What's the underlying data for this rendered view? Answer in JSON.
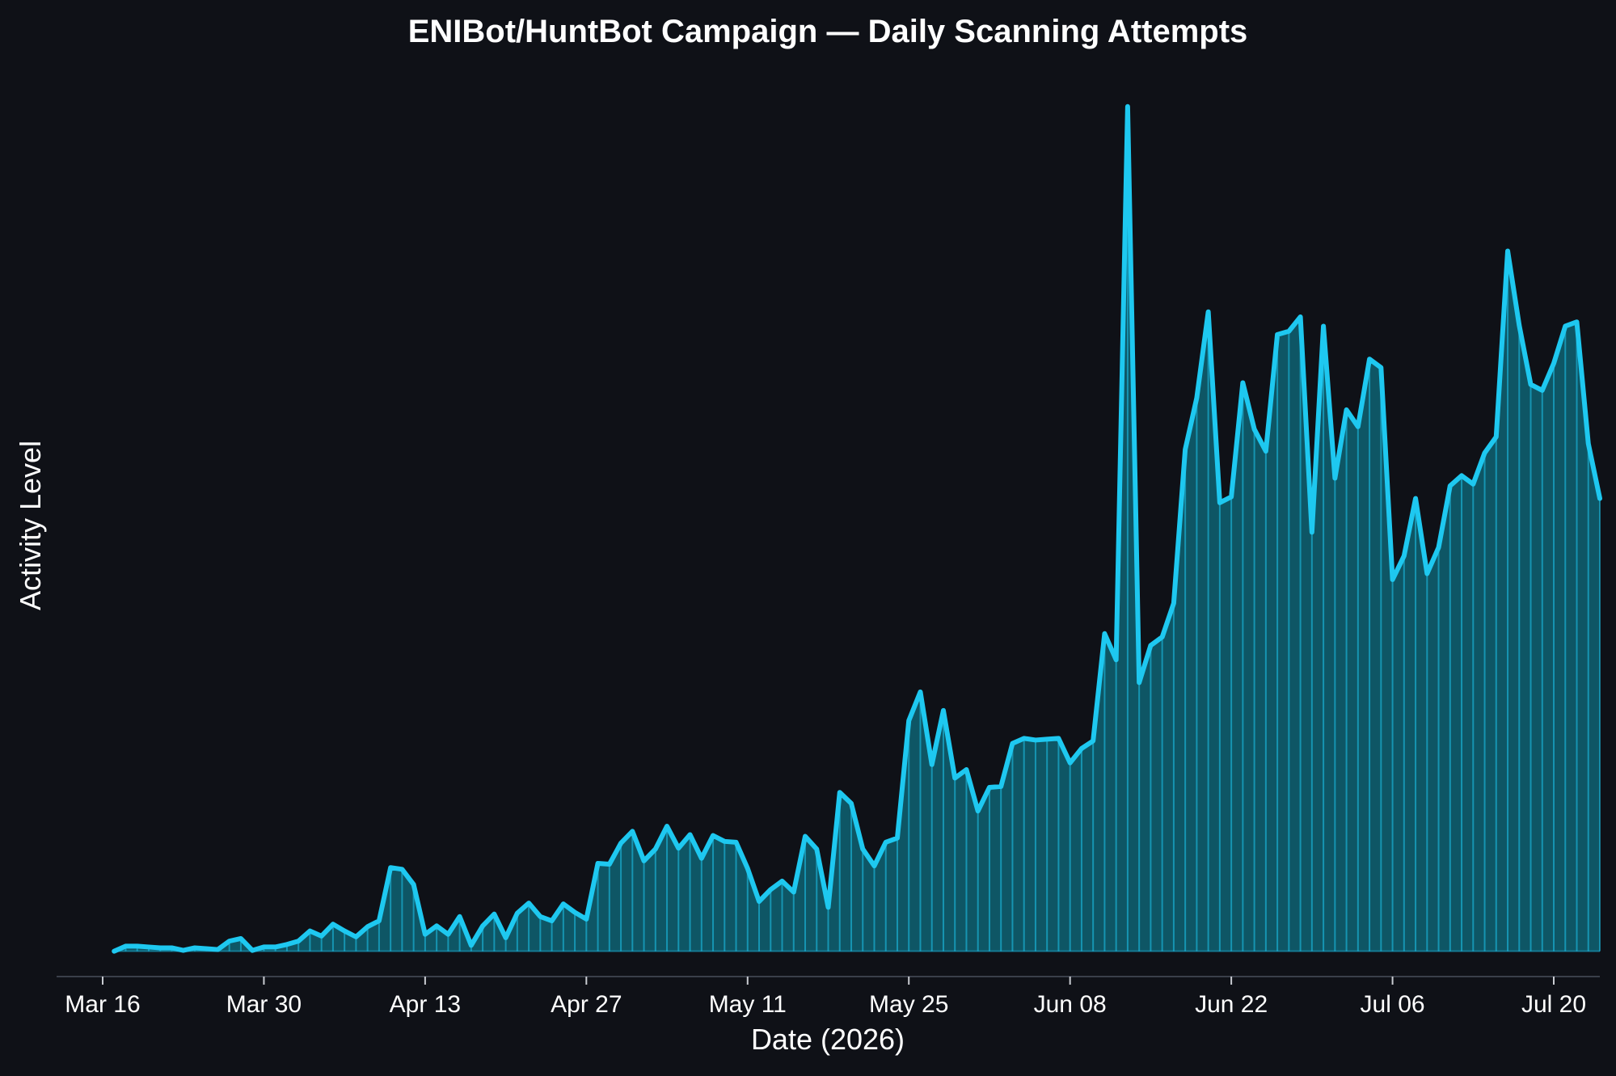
{
  "chart_data": {
    "type": "area",
    "title": "ENIBot/HuntBot Campaign — Daily Scanning Attempts",
    "xlabel": "Date (2026)",
    "ylabel": "Activity Level",
    "x_start": "2026-03-17",
    "x_end": "2026-07-23",
    "xlim": [
      "2026-03-12",
      "2026-07-24"
    ],
    "ylim": [
      -3,
      104
    ],
    "xticks": [
      {
        "date": "2026-03-16",
        "label": "Mar 16"
      },
      {
        "date": "2026-03-30",
        "label": "Mar 30"
      },
      {
        "date": "2026-04-13",
        "label": "Apr 13"
      },
      {
        "date": "2026-04-27",
        "label": "Apr 27"
      },
      {
        "date": "2026-05-11",
        "label": "May 11"
      },
      {
        "date": "2026-05-25",
        "label": "May 25"
      },
      {
        "date": "2026-06-08",
        "label": "Jun 08"
      },
      {
        "date": "2026-06-22",
        "label": "Jun 22"
      },
      {
        "date": "2026-07-06",
        "label": "Jul 06"
      },
      {
        "date": "2026-07-20",
        "label": "Jul 20"
      }
    ],
    "grid": false,
    "series": [
      {
        "color": "#1ec8f0",
        "fill_color": "#0e8fa5",
        "values": [
          0.0,
          0.6,
          0.6,
          0.5,
          0.4,
          0.4,
          0.1,
          0.4,
          0.3,
          0.2,
          1.2,
          1.5,
          0.1,
          0.5,
          0.5,
          0.8,
          1.2,
          2.4,
          1.8,
          3.2,
          2.4,
          1.7,
          2.9,
          3.6,
          9.9,
          9.7,
          7.9,
          2.0,
          3.0,
          2.0,
          4.1,
          0.7,
          3.0,
          4.4,
          1.6,
          4.5,
          5.7,
          4.1,
          3.6,
          5.6,
          4.6,
          3.8,
          10.4,
          10.3,
          12.8,
          14.2,
          10.7,
          12.1,
          14.8,
          12.2,
          13.8,
          11.0,
          13.7,
          13.0,
          12.9,
          9.8,
          5.9,
          7.3,
          8.3,
          7.0,
          13.6,
          12.1,
          5.2,
          18.8,
          17.5,
          12.1,
          10.1,
          12.9,
          13.4,
          27.3,
          30.7,
          22.1,
          28.5,
          20.5,
          21.5,
          16.6,
          19.4,
          19.5,
          24.6,
          25.2,
          25.0,
          25.1,
          25.2,
          22.3,
          24.0,
          24.9,
          37.6,
          34.5,
          100.0,
          31.8,
          36.2,
          37.2,
          41.2,
          59.4,
          65.5,
          75.7,
          53.1,
          53.8,
          67.3,
          61.8,
          59.2,
          73.0,
          73.4,
          75.1,
          49.6,
          74.0,
          56.0,
          64.1,
          62.1,
          70.1,
          69.1,
          44.0,
          46.8,
          53.6,
          44.7,
          47.8,
          55.1,
          56.3,
          55.3,
          59.0,
          60.9,
          82.9,
          74.1,
          67.1,
          66.4,
          69.6,
          74.0,
          74.5,
          60.1,
          53.6
        ]
      }
    ]
  }
}
